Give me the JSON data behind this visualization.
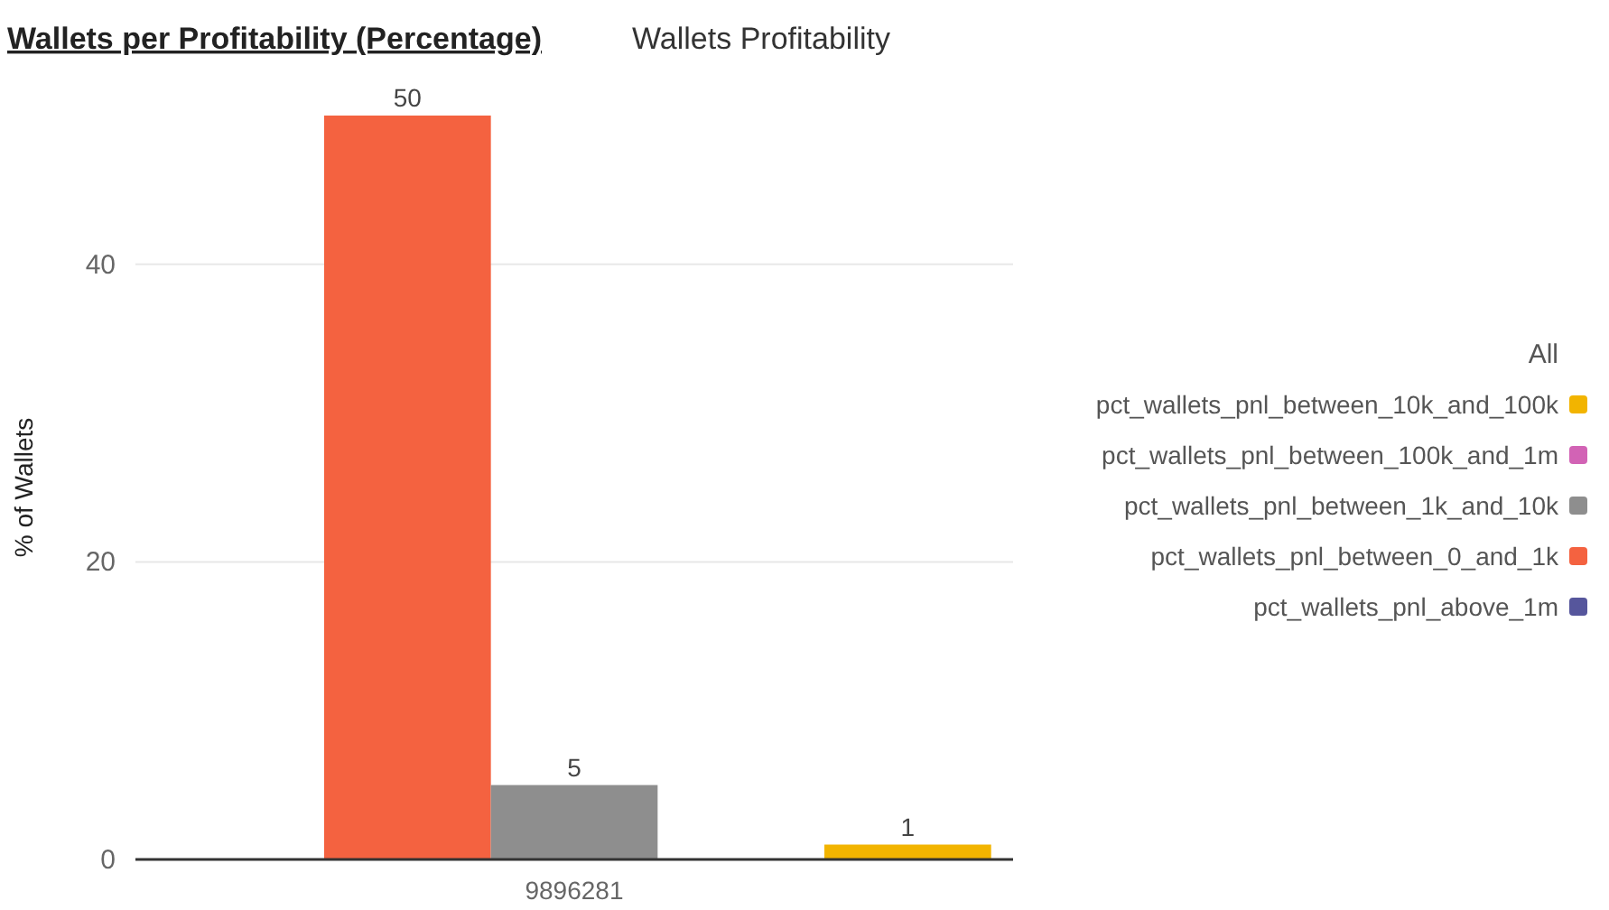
{
  "chart_data": {
    "type": "bar",
    "title": "Wallets per Profitability (Percentage)",
    "subtitle": "Wallets Profitability",
    "ylabel": "% of Wallets",
    "categories": [
      "9896281"
    ],
    "series": [
      {
        "name": "pct_wallets_pnl_above_1m",
        "color": "#56569c",
        "values": [
          0
        ],
        "value_labels": [
          null
        ]
      },
      {
        "name": "pct_wallets_pnl_between_0_and_1k",
        "color": "#f46240",
        "values": [
          50
        ],
        "value_labels": [
          "50"
        ]
      },
      {
        "name": "pct_wallets_pnl_between_1k_and_10k",
        "color": "#8e8e8e",
        "values": [
          5
        ],
        "value_labels": [
          "5"
        ]
      },
      {
        "name": "pct_wallets_pnl_between_100k_and_1m",
        "color": "#d263b5",
        "values": [
          0
        ],
        "value_labels": [
          null
        ]
      },
      {
        "name": "pct_wallets_pnl_between_10k_and_100k",
        "color": "#f2b400",
        "values": [
          1
        ],
        "value_labels": [
          "1"
        ]
      }
    ],
    "ylim": [
      0,
      50
    ],
    "yticks": [
      0,
      20,
      40
    ],
    "grid": "y",
    "legend": "right",
    "legend_title": "All"
  }
}
